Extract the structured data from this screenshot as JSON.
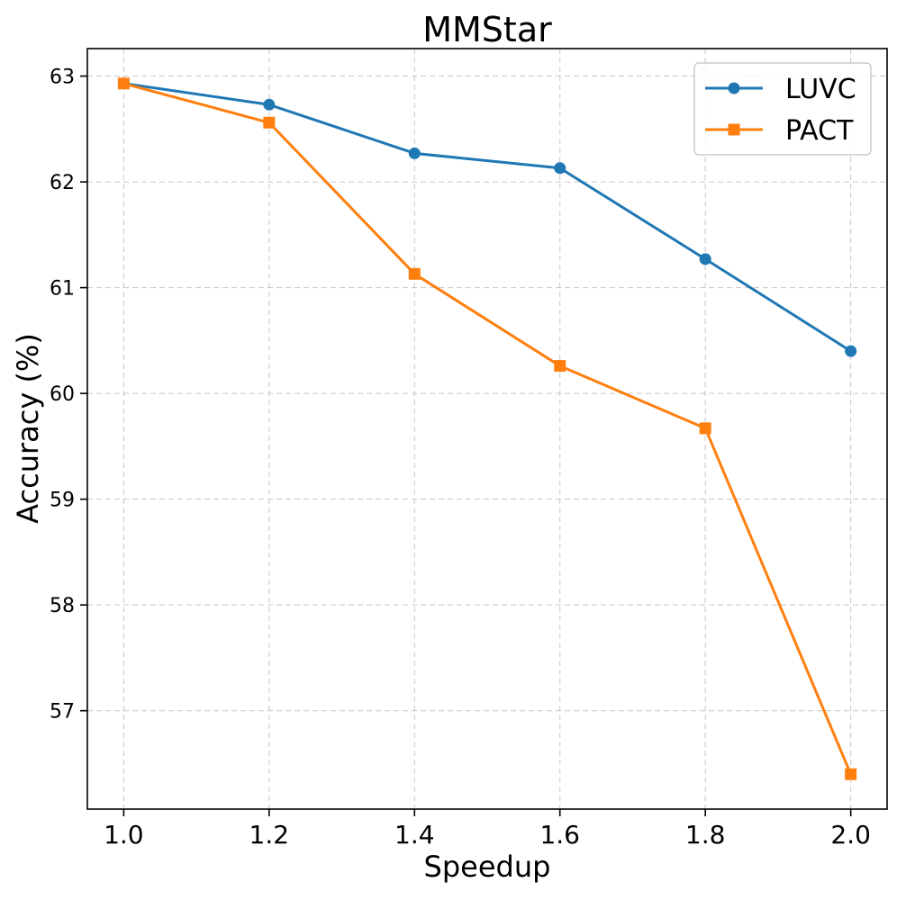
{
  "chart_data": {
    "type": "line",
    "title": "MMStar",
    "xlabel": "Speedup",
    "ylabel": "Accuracy (%)",
    "x": [
      1.0,
      1.2,
      1.4,
      1.6,
      1.8,
      2.0
    ],
    "x_tick_labels": [
      "1.0",
      "1.2",
      "1.4",
      "1.6",
      "1.8",
      "2.0"
    ],
    "y_ticks": [
      57,
      58,
      59,
      60,
      61,
      62,
      63
    ],
    "y_tick_labels": [
      "57",
      "58",
      "59",
      "60",
      "61",
      "62",
      "63"
    ],
    "xlim": [
      0.95,
      2.05
    ],
    "ylim": [
      56.07,
      63.26
    ],
    "grid": true,
    "legend_position": "top-right",
    "series": [
      {
        "name": "LUVC",
        "color": "#1f77b4",
        "marker": "circle",
        "values": [
          62.93,
          62.73,
          62.27,
          62.13,
          61.27,
          60.4
        ]
      },
      {
        "name": "PACT",
        "color": "#ff7f0e",
        "marker": "square",
        "values": [
          62.93,
          62.56,
          61.13,
          60.26,
          59.67,
          56.4
        ]
      }
    ]
  }
}
